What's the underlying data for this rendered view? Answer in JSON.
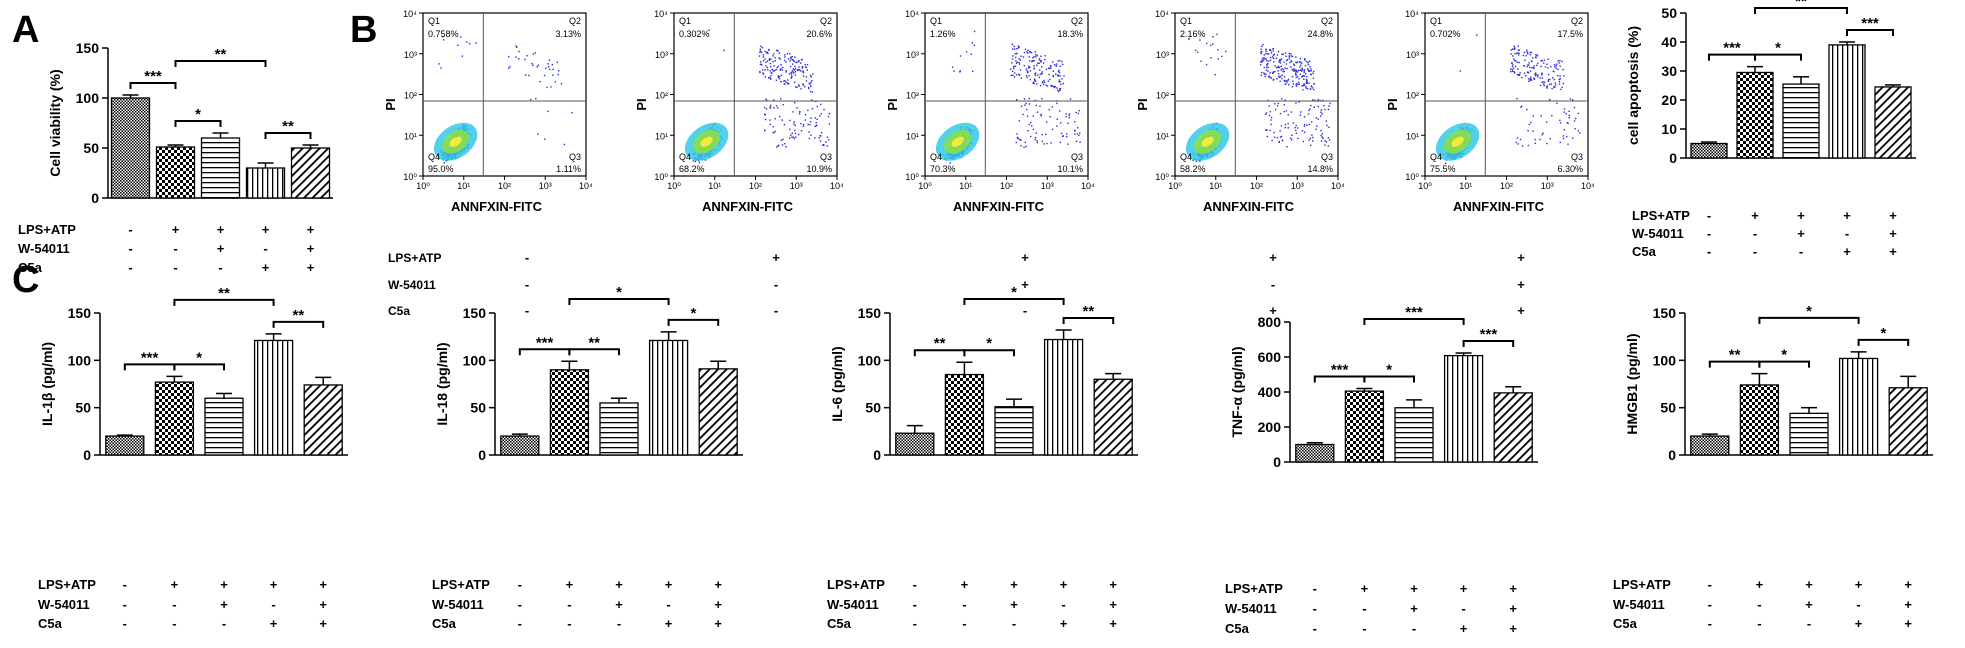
{
  "colors": {
    "ink": "#000000",
    "flow_dot": "#2b2bd6",
    "flow_core_1": "#33c9e6",
    "flow_core_2": "#8be04a",
    "flow_core_3": "#f5e93a"
  },
  "panel_letters": {
    "a": "A",
    "b": "B",
    "c": "C"
  },
  "treat_rows": [
    "LPS+ATP",
    "W-54011",
    "C5a"
  ],
  "conditions": [
    {
      "signs": [
        "-",
        "-",
        "-"
      ]
    },
    {
      "signs": [
        "+",
        "-",
        "-"
      ]
    },
    {
      "signs": [
        "+",
        "+",
        "-"
      ]
    },
    {
      "signs": [
        "+",
        "-",
        "+"
      ]
    },
    {
      "signs": [
        "+",
        "+",
        "+"
      ]
    }
  ],
  "flow": {
    "xlabel": "ANNFXIN-FITC",
    "ylabel": "PI",
    "x_ticks": [
      "10⁰",
      "10¹",
      "10²",
      "10³",
      "10⁴"
    ],
    "y_ticks": [
      "10⁰",
      "10¹",
      "10²",
      "10³",
      "10⁴"
    ],
    "quadrant_labels": [
      "Q1",
      "Q2",
      "Q3",
      "Q4"
    ],
    "plots": [
      {
        "q1": "0.758%",
        "q2": "3.13%",
        "q3": "1.11%",
        "q4": "95.0%"
      },
      {
        "q1": "0.302%",
        "q2": "20.6%",
        "q3": "10.9%",
        "q4": "68.2%"
      },
      {
        "q1": "1.26%",
        "q2": "18.3%",
        "q3": "10.1%",
        "q4": "70.3%"
      },
      {
        "q1": "2.16%",
        "q2": "24.8%",
        "q3": "14.8%",
        "q4": "58.2%"
      },
      {
        "q1": "0.702%",
        "q2": "17.5%",
        "q3": "6.30%",
        "q4": "75.5%"
      }
    ],
    "rows": [
      {
        "label": "LPS+ATP",
        "signs": [
          "-",
          "+",
          "+",
          "+",
          "+"
        ]
      },
      {
        "label": "W-54011",
        "signs": [
          "-",
          "-",
          "+",
          "-",
          "+"
        ]
      },
      {
        "label": "C5a",
        "signs": [
          "-",
          "-",
          "-",
          "+",
          "+"
        ]
      }
    ]
  },
  "chart_data": [
    {
      "id": "viability",
      "type": "bar",
      "ylabel": "Cell viability (%)",
      "ylim": [
        0,
        150
      ],
      "yticks": [
        0,
        50,
        100,
        150
      ],
      "values": [
        100,
        51,
        60,
        30,
        50
      ],
      "errors": [
        3,
        2,
        5,
        5,
        3
      ],
      "brackets": [
        {
          "from": 0,
          "to": 1,
          "label": "***"
        },
        {
          "from": 1,
          "to": 2,
          "label": "*"
        },
        {
          "from": 1,
          "to": 3,
          "label": "**"
        },
        {
          "from": 3,
          "to": 4,
          "label": "**"
        }
      ]
    },
    {
      "id": "apoptosis",
      "type": "bar",
      "ylabel": "cell apoptosis (%)",
      "ylim": [
        0,
        50
      ],
      "yticks": [
        0,
        10,
        20,
        30,
        40,
        50
      ],
      "values": [
        5,
        29.5,
        25.5,
        39,
        24.5
      ],
      "errors": [
        0.5,
        2,
        2.5,
        1,
        0.7
      ],
      "brackets": [
        {
          "from": 0,
          "to": 1,
          "label": "***"
        },
        {
          "from": 1,
          "to": 2,
          "label": "*"
        },
        {
          "from": 1,
          "to": 3,
          "label": "**"
        },
        {
          "from": 3,
          "to": 4,
          "label": "***"
        }
      ]
    },
    {
      "id": "il1b",
      "type": "bar",
      "ylabel": "IL-1β (pg/ml)",
      "ylim": [
        0,
        150
      ],
      "yticks": [
        0,
        50,
        100,
        150
      ],
      "values": [
        20,
        77,
        60,
        121,
        74
      ],
      "errors": [
        1,
        6,
        5,
        7,
        8
      ],
      "brackets": [
        {
          "from": 0,
          "to": 1,
          "label": "***"
        },
        {
          "from": 1,
          "to": 2,
          "label": "*"
        },
        {
          "from": 1,
          "to": 3,
          "label": "**"
        },
        {
          "from": 3,
          "to": 4,
          "label": "**"
        }
      ]
    },
    {
      "id": "il18",
      "type": "bar",
      "ylabel": "IL-18 (pg/ml)",
      "ylim": [
        0,
        150
      ],
      "yticks": [
        0,
        50,
        100,
        150
      ],
      "values": [
        20,
        90,
        55,
        121,
        91
      ],
      "errors": [
        2,
        9,
        5,
        9,
        8
      ],
      "brackets": [
        {
          "from": 0,
          "to": 1,
          "label": "***"
        },
        {
          "from": 1,
          "to": 2,
          "label": "**"
        },
        {
          "from": 1,
          "to": 3,
          "label": "*"
        },
        {
          "from": 3,
          "to": 4,
          "label": "*"
        }
      ]
    },
    {
      "id": "il6",
      "type": "bar",
      "ylabel": "IL-6 (pg/ml)",
      "ylim": [
        0,
        150
      ],
      "yticks": [
        0,
        50,
        100,
        150
      ],
      "values": [
        23,
        85,
        51,
        122,
        80
      ],
      "errors": [
        8,
        13,
        8,
        10,
        6
      ],
      "brackets": [
        {
          "from": 0,
          "to": 1,
          "label": "**"
        },
        {
          "from": 1,
          "to": 2,
          "label": "*"
        },
        {
          "from": 1,
          "to": 3,
          "label": "*"
        },
        {
          "from": 3,
          "to": 4,
          "label": "**"
        }
      ]
    },
    {
      "id": "tnfa",
      "type": "bar",
      "ylabel": "TNF-α (pg/ml)",
      "ylim": [
        0,
        800
      ],
      "yticks": [
        0,
        200,
        400,
        600,
        800
      ],
      "values": [
        100,
        405,
        310,
        608,
        395
      ],
      "errors": [
        10,
        15,
        45,
        15,
        35
      ],
      "brackets": [
        {
          "from": 0,
          "to": 1,
          "label": "***"
        },
        {
          "from": 1,
          "to": 2,
          "label": "*"
        },
        {
          "from": 1,
          "to": 3,
          "label": "***"
        },
        {
          "from": 3,
          "to": 4,
          "label": "***"
        }
      ]
    },
    {
      "id": "hmgb1",
      "type": "bar",
      "ylabel": "HMGB1 (pg/ml)",
      "ylim": [
        0,
        150
      ],
      "yticks": [
        0,
        50,
        100,
        150
      ],
      "values": [
        20,
        74,
        44,
        102,
        71
      ],
      "errors": [
        2,
        12,
        6,
        7,
        12
      ],
      "brackets": [
        {
          "from": 0,
          "to": 1,
          "label": "**"
        },
        {
          "from": 1,
          "to": 2,
          "label": "*"
        },
        {
          "from": 1,
          "to": 3,
          "label": "*"
        },
        {
          "from": 3,
          "to": 4,
          "label": "*"
        }
      ]
    }
  ]
}
